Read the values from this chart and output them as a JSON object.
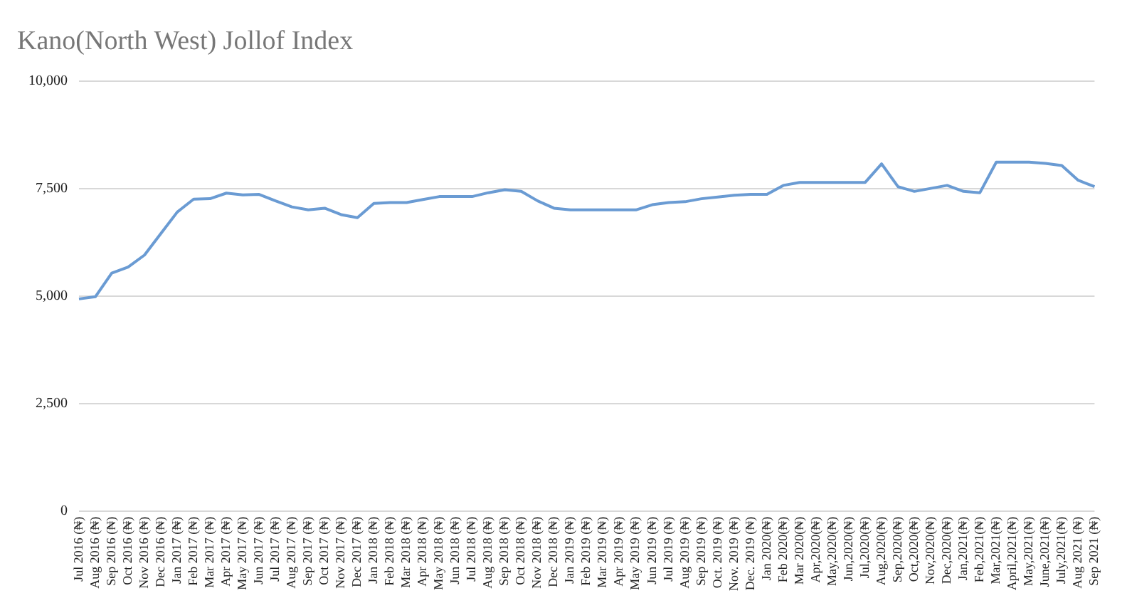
{
  "chart_data": {
    "type": "line",
    "title": "Kano(North West) Jollof Index",
    "categories": [
      "Jul 2016 (₦)",
      "Aug 2016 (₦)",
      "Sep 2016 (₦)",
      "Oct 2016 (₦)",
      "Nov 2016 (₦)",
      "Dec 2016 (₦)",
      "Jan 2017 (₦)",
      "Feb 2017 (₦)",
      "Mar 2017 (₦)",
      "Apr 2017 (₦)",
      "May 2017 (₦)",
      "Jun 2017 (₦)",
      "Jul 2017 (₦)",
      "Aug 2017 (₦)",
      "Sep 2017 (₦)",
      "Oct 2017 (₦)",
      "Nov 2017 (₦)",
      "Dec 2017 (₦)",
      "Jan 2018 (₦)",
      "Feb 2018 (₦)",
      "Mar 2018 (₦)",
      "Apr 2018 (₦)",
      "May 2018 (₦)",
      "Jun 2018 (₦)",
      "Jul 2018 (₦)",
      "Aug 2018 (₦)",
      "Sep 2018 (₦)",
      "Oct 2018 (₦)",
      "Nov 2018 (₦)",
      "Dec 2018 (₦)",
      "Jan 2019 (₦)",
      "Feb 2019 (₦)",
      "Mar 2019 (₦)",
      "Apr 2019 (₦)",
      "May 2019 (₦)",
      "Jun 2019 (₦)",
      "Jul 2019 (₦)",
      "Aug 2019 (₦)",
      "Sep 2019 (₦)",
      "Oct. 2019 (₦)",
      "Nov. 2019 (₦)",
      "Dec. 2019 (₦)",
      "Jan 2020(₦)",
      "Feb 2020(₦)",
      "Mar 2020(₦)",
      "Apr,2020(₦)",
      "May,2020(₦)",
      "Jun,2020(₦)",
      "Jul,2020(₦)",
      "Aug,2020(₦)",
      "Sep,2020(₦)",
      "Oct,2020(₦)",
      "Nov,2020(₦)",
      "Dec,2020(₦)",
      "Jan,2021(₦)",
      "Feb,2021(₦)",
      "Mar,2021(₦)",
      "April,2021(₦)",
      "May,2021(₦)",
      "June,2021(₦)",
      "July,2021(₦)",
      "Aug 2021 (₦)",
      "Sep 2021 (₦)"
    ],
    "series": [
      {
        "color": "#6a9bd3",
        "values": [
          4930,
          4980,
          5530,
          5670,
          5950,
          6450,
          6950,
          7250,
          7260,
          7390,
          7350,
          7360,
          7210,
          7070,
          7000,
          7040,
          6890,
          6820,
          7150,
          7170,
          7170,
          7240,
          7310,
          7310,
          7310,
          7400,
          7470,
          7430,
          7210,
          7040,
          7000,
          7000,
          7000,
          7000,
          7000,
          7120,
          7170,
          7190,
          7260,
          7300,
          7340,
          7360,
          7360,
          7570,
          7640,
          7640,
          7640,
          7640,
          7640,
          8070,
          7540,
          7430,
          7500,
          7570,
          7430,
          7400,
          8110,
          8110,
          8110,
          8080,
          8030,
          7690,
          7540
        ]
      }
    ],
    "ylim": [
      0,
      10000
    ],
    "yticks": [
      0,
      {
        "value": 2500,
        "label": "2,500"
      },
      {
        "value": 5000,
        "label": "5,000"
      },
      {
        "value": 7500,
        "label": "7,500"
      },
      {
        "value": 10000,
        "label": "10,000"
      }
    ],
    "grid": "y",
    "legend": false,
    "marker": "none",
    "line_style": "solid"
  }
}
